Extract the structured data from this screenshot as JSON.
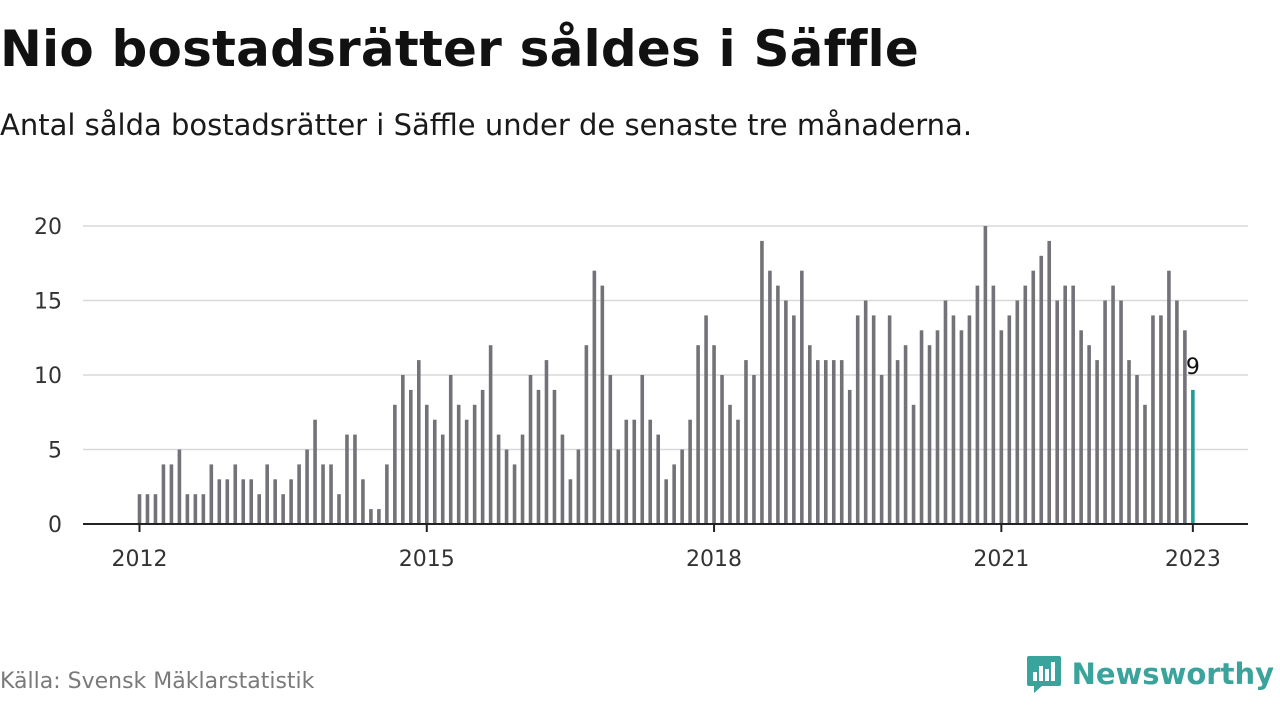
{
  "header": {
    "title": "Nio bostadsrätter såldes i Säffle",
    "subtitle": "Antal sålda bostadsrätter i Säffle under de senaste tre månaderna."
  },
  "footer": {
    "source": "Källa: Svensk Mäklarstatistik",
    "brand": "Newsworthy",
    "brand_icon": "bar-chart-speech-bubble-icon"
  },
  "colors": {
    "bar": "#737278",
    "highlight": "#1f9e96",
    "grid": "#d9d9d9",
    "axis": "#222222",
    "brand": "#3aa39b"
  },
  "chart_data": {
    "type": "bar",
    "title": "Nio bostadsrätter såldes i Säffle",
    "subtitle": "Antal sålda bostadsrätter i Säffle under de senaste tre månaderna.",
    "x_start": "2012-01",
    "x_end": "2023-01",
    "x_unit": "month",
    "x_ticks": [
      "2012",
      "2015",
      "2018",
      "2021",
      "2023"
    ],
    "y_ticks": [
      0,
      5,
      10,
      15,
      20
    ],
    "ylim": [
      0,
      20
    ],
    "grid": true,
    "values": [
      2,
      2,
      2,
      4,
      4,
      5,
      2,
      2,
      2,
      4,
      3,
      3,
      4,
      3,
      3,
      2,
      4,
      3,
      2,
      3,
      4,
      5,
      7,
      4,
      4,
      2,
      6,
      6,
      3,
      1,
      1,
      4,
      8,
      10,
      9,
      11,
      8,
      7,
      6,
      10,
      8,
      7,
      8,
      9,
      12,
      6,
      5,
      4,
      6,
      10,
      9,
      11,
      9,
      6,
      3,
      5,
      12,
      17,
      16,
      10,
      5,
      7,
      7,
      10,
      7,
      6,
      3,
      4,
      5,
      7,
      12,
      14,
      12,
      10,
      8,
      7,
      11,
      10,
      19,
      17,
      16,
      15,
      14,
      17,
      12,
      11,
      11,
      11,
      11,
      9,
      14,
      15,
      14,
      10,
      14,
      11,
      12,
      8,
      13,
      12,
      13,
      15,
      14,
      13,
      14,
      16,
      20,
      16,
      13,
      14,
      15,
      16,
      17,
      18,
      19,
      15,
      16,
      16,
      13,
      12,
      11,
      15,
      16,
      15,
      11,
      10,
      8,
      14,
      14,
      17,
      15,
      13,
      9
    ],
    "highlight_label": "9"
  }
}
